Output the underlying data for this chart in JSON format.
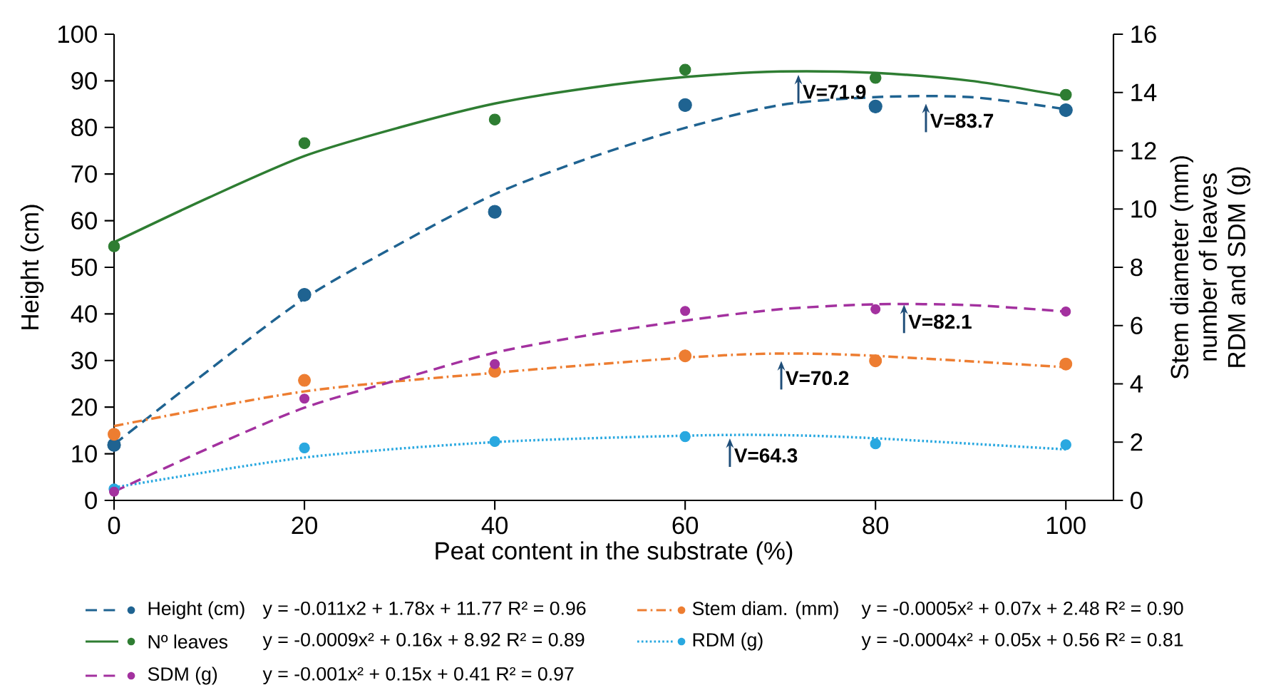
{
  "chart_data": {
    "type": "scatter",
    "xlabel": "Peat content in the substrate (%)",
    "ylabel": "Height (cm)",
    "y2label": [
      "Stem diameter  (mm)",
      "number of leaves",
      "RDM and SDM (g)"
    ],
    "x": [
      0,
      20,
      40,
      60,
      80,
      100
    ],
    "xlim": [
      0,
      105
    ],
    "xticks": [
      0,
      20,
      40,
      60,
      80,
      100
    ],
    "ylim": [
      0,
      100
    ],
    "yticks": [
      0,
      10,
      20,
      30,
      40,
      50,
      60,
      70,
      80,
      90,
      100
    ],
    "y2lim": [
      0,
      16
    ],
    "y2ticks": [
      0,
      2,
      4,
      6,
      8,
      10,
      12,
      14,
      16
    ],
    "grid": false,
    "legend": "bottom",
    "series": [
      {
        "name": "Height (cm)",
        "marker": "circle",
        "color": "#1f6391",
        "values": [
          11.9,
          44.1,
          61.9,
          84.8,
          84.5,
          83.7
        ]
      },
      {
        "type": "line",
        "marker": "none",
        "line_style": "dashed",
        "color": "#1f6391",
        "x": [
          0,
          10,
          20,
          30,
          40,
          50,
          60,
          70,
          80,
          90,
          100
        ],
        "values": [
          12,
          28,
          43.3,
          55,
          65.7,
          73.5,
          79.9,
          84.8,
          86.5,
          86.5,
          83.9
        ]
      },
      {
        "name": "Stem diam. (mm)",
        "marker": "circle",
        "axis": "y2",
        "color": "#ed7d31",
        "values": [
          2.27,
          4.12,
          4.43,
          4.96,
          4.79,
          4.68
        ]
      },
      {
        "type": "line",
        "marker": "none",
        "axis": "y2",
        "line_style": "dashdot",
        "color": "#ed7d31",
        "x": [
          0,
          20,
          40,
          60,
          70,
          80,
          100
        ],
        "values": [
          2.55,
          3.74,
          4.38,
          4.9,
          5.04,
          4.96,
          4.57
        ]
      },
      {
        "name": "Nº leaves",
        "marker": "circle",
        "axis": "y2",
        "color": "#2e7d32",
        "values": [
          8.72,
          12.26,
          13.07,
          14.78,
          14.5,
          13.92
        ]
      },
      {
        "type": "line",
        "marker": "none",
        "axis": "y2",
        "line_style": "solid",
        "color": "#2e7d32",
        "x": [
          0,
          10,
          20,
          30,
          40,
          50,
          60,
          70,
          80,
          90,
          100
        ],
        "values": [
          8.86,
          10.4,
          11.82,
          12.8,
          13.62,
          14.16,
          14.53,
          14.72,
          14.67,
          14.4,
          13.87
        ]
      },
      {
        "name": "RDM (g)",
        "marker": "circle",
        "axis": "y2",
        "color": "#29a8e0",
        "values": [
          0.39,
          1.8,
          2.02,
          2.19,
          1.94,
          1.91
        ]
      },
      {
        "type": "line",
        "marker": "none",
        "axis": "y2",
        "line_style": "dotted",
        "color": "#29a8e0",
        "x": [
          0,
          20,
          40,
          60,
          70,
          80,
          100
        ],
        "values": [
          0.44,
          1.47,
          2.0,
          2.22,
          2.24,
          2.13,
          1.75
        ]
      },
      {
        "name": "SDM (g)",
        "marker": "circle",
        "axis": "y2",
        "color": "#a3319f",
        "values": [
          0.3,
          3.49,
          4.68,
          6.5,
          6.56,
          6.48
        ]
      },
      {
        "type": "line",
        "marker": "none",
        "axis": "y2",
        "line_style": "dashed",
        "color": "#a3319f",
        "x": [
          0,
          10,
          20,
          30,
          40,
          50,
          60,
          70,
          80,
          90,
          100
        ],
        "values": [
          0.3,
          1.8,
          3.18,
          4.15,
          5.07,
          5.68,
          6.17,
          6.56,
          6.73,
          6.7,
          6.48
        ]
      }
    ],
    "annotations": [
      {
        "text": "V=71.9",
        "x": 71.9,
        "y": 91.3
      },
      {
        "text": "V=83.7",
        "x": 85.3,
        "y": 85.1
      },
      {
        "text": "V=82.1",
        "x": 83.0,
        "y": 42.0
      },
      {
        "text": "V=70.2",
        "x": 70.1,
        "y": 29.9
      },
      {
        "text": "V=64.3",
        "x": 64.7,
        "y": 13.3
      },
      "y = -0.011x2 + 1.78x + 11.77 R² = 0.96",
      "y = -0.0005x² + 0.07x + 2.48 R² = 0.90",
      "y = -0.0009x² + 0.16x + 8.92 R² = 0.89",
      "y = -0.0004x² + 0.05x + 0.56 R² = 0.81",
      "y = -0.001x² + 0.15x + 0.41   R² = 0.97"
    ]
  }
}
